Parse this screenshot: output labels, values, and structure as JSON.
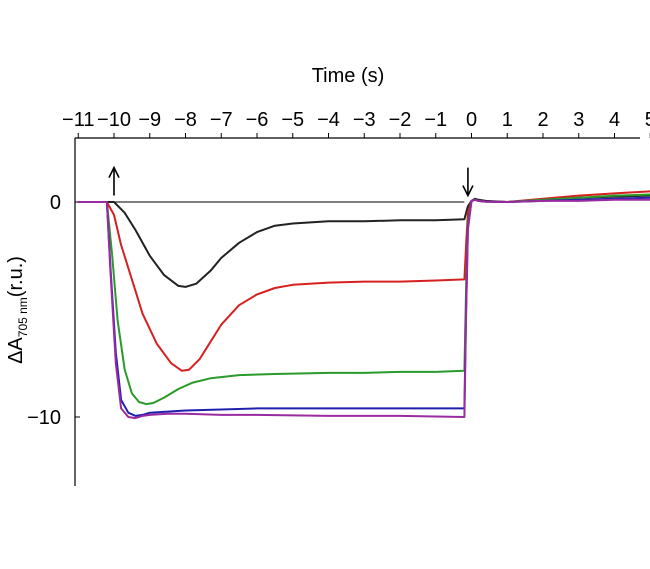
{
  "chart_data": {
    "type": "line",
    "title": "",
    "xlabel": "Time (s)",
    "xaxis_position": "top",
    "ylabel": {
      "main": "ΔA",
      "subscript": "705 nm",
      "suffix": "(r.u.)"
    },
    "xlim": [
      -11,
      5
    ],
    "ylim": [
      -13,
      3
    ],
    "x_ticks": [
      -11,
      -10,
      -9,
      -8,
      -7,
      -6,
      -5,
      -4,
      -3,
      -2,
      -1,
      0,
      1,
      2,
      3,
      4,
      5
    ],
    "x_tick_labels": [
      "−11",
      "−10",
      "−9",
      "−8",
      "−7",
      "−6",
      "−5",
      "−4",
      "−3",
      "−2",
      "−1",
      "0",
      "1",
      "2",
      "3",
      "4",
      "5"
    ],
    "y_ticks": [
      0,
      -10
    ],
    "y_tick_labels": [
      "0",
      "−10"
    ],
    "baseline": {
      "y": 0,
      "color": "#000000"
    },
    "annotations": [
      {
        "type": "arrow",
        "direction": "up",
        "x": -10.0,
        "y": 0.3,
        "y_end": 1.6
      },
      {
        "type": "arrow",
        "direction": "down",
        "x": -0.1,
        "y": 1.6,
        "y_end": 0.3
      }
    ],
    "series": [
      {
        "color": "#222222",
        "x": [
          -11,
          -10.2,
          -10,
          -9.7,
          -9.4,
          -9,
          -8.6,
          -8.2,
          -8,
          -7.7,
          -7.3,
          -7,
          -6.5,
          -6,
          -5.5,
          -5,
          -4.5,
          -4,
          -3,
          -2,
          -1,
          -0.2,
          -0.15,
          -0.1,
          0,
          0.1,
          0.2,
          0.4,
          1,
          2,
          3,
          4,
          5
        ],
        "y": [
          0,
          0,
          0,
          -0.5,
          -1.3,
          -2.5,
          -3.4,
          -3.9,
          -3.95,
          -3.8,
          -3.2,
          -2.6,
          -1.9,
          -1.4,
          -1.1,
          -1.0,
          -0.95,
          -0.9,
          -0.9,
          -0.85,
          -0.85,
          -0.8,
          -0.5,
          -0.2,
          0.05,
          0.15,
          0.1,
          0.05,
          0,
          0.1,
          0.2,
          0.25,
          0.3
        ]
      },
      {
        "color": "#d62020",
        "x": [
          -11,
          -10.2,
          -10,
          -9.8,
          -9.5,
          -9.2,
          -8.8,
          -8.4,
          -8.1,
          -7.9,
          -7.6,
          -7.3,
          -7,
          -6.5,
          -6,
          -5.5,
          -5,
          -4,
          -3,
          -2,
          -1,
          -0.2,
          -0.15,
          -0.1,
          0,
          0.1,
          0.2,
          0.4,
          1,
          2,
          3,
          4,
          5
        ],
        "y": [
          0,
          0,
          -0.6,
          -2.0,
          -3.6,
          -5.2,
          -6.6,
          -7.5,
          -7.85,
          -7.8,
          -7.3,
          -6.5,
          -5.7,
          -4.8,
          -4.3,
          -4.0,
          -3.85,
          -3.75,
          -3.7,
          -3.7,
          -3.65,
          -3.6,
          -2.0,
          -0.5,
          0.05,
          0.1,
          0.05,
          0.02,
          0,
          0.15,
          0.3,
          0.4,
          0.5
        ]
      },
      {
        "color": "#2a9a2a",
        "x": [
          -11,
          -10.2,
          -10.05,
          -9.9,
          -9.7,
          -9.5,
          -9.3,
          -9.1,
          -8.9,
          -8.6,
          -8.2,
          -7.8,
          -7.3,
          -6.5,
          -5.5,
          -4,
          -3,
          -2,
          -1,
          -0.2,
          -0.15,
          -0.1,
          0,
          0.1,
          0.2,
          0.4,
          1,
          2,
          3,
          4,
          5
        ],
        "y": [
          0,
          0,
          -2.5,
          -5.5,
          -7.8,
          -8.9,
          -9.3,
          -9.4,
          -9.35,
          -9.1,
          -8.7,
          -8.4,
          -8.2,
          -8.05,
          -8.0,
          -7.95,
          -7.95,
          -7.9,
          -7.9,
          -7.85,
          -4.0,
          -1.0,
          0.05,
          0.1,
          0.05,
          0.02,
          0,
          0.1,
          0.2,
          0.3,
          0.35
        ]
      },
      {
        "color": "#2020b0",
        "x": [
          -11,
          -10.2,
          -10.1,
          -9.95,
          -9.8,
          -9.6,
          -9.4,
          -9.2,
          -9.0,
          -8.5,
          -8,
          -7,
          -6,
          -4,
          -2,
          -0.2,
          -0.15,
          -0.1,
          0,
          0.1,
          0.2,
          0.4,
          1,
          2,
          3,
          4,
          5
        ],
        "y": [
          0,
          0,
          -3.0,
          -7.0,
          -9.2,
          -9.8,
          -9.95,
          -9.9,
          -9.8,
          -9.75,
          -9.7,
          -9.65,
          -9.6,
          -9.6,
          -9.6,
          -9.6,
          -5.0,
          -1.2,
          0.05,
          0.1,
          0.05,
          0.02,
          0,
          0.05,
          0.1,
          0.15,
          0.2
        ]
      },
      {
        "color": "#9a2aa0",
        "x": [
          -11,
          -10.2,
          -10.1,
          -9.95,
          -9.8,
          -9.6,
          -9.4,
          -9.2,
          -9.0,
          -8.5,
          -8,
          -7,
          -6,
          -4,
          -2,
          -0.2,
          -0.15,
          -0.1,
          0,
          0.1,
          0.2,
          0.4,
          1,
          2,
          3,
          4,
          5
        ],
        "y": [
          0,
          0,
          -3.2,
          -7.5,
          -9.6,
          -10.0,
          -10.05,
          -9.95,
          -9.9,
          -9.85,
          -9.85,
          -9.9,
          -9.9,
          -9.95,
          -9.95,
          -10.0,
          -5.2,
          -1.3,
          0.05,
          0.1,
          0.05,
          0.02,
          0,
          0.05,
          0.05,
          0.1,
          0.1
        ]
      }
    ]
  }
}
